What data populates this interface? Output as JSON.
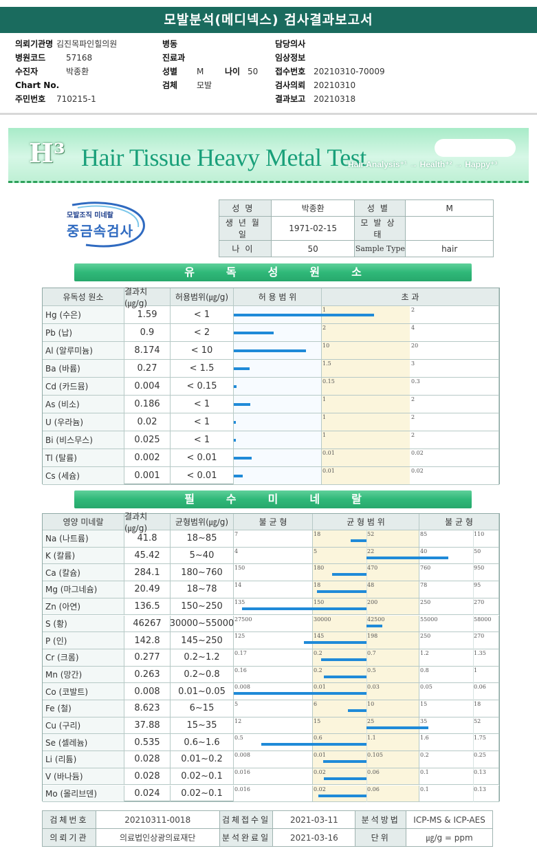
{
  "header": {
    "title": "모발분석(메디넥스) 검사결과보고서"
  },
  "patient_info": {
    "rows": [
      [
        {
          "label": "의뢰기관명",
          "value": "김진목파인힐의원"
        },
        {
          "label": "병동",
          "value": ""
        },
        {
          "label": "담당의사",
          "value": ""
        }
      ],
      [
        {
          "label": "병원코드",
          "value": "57168"
        },
        {
          "label": "진료과",
          "value": ""
        },
        {
          "label": "임상정보",
          "value": ""
        }
      ],
      [
        {
          "label": "수진자",
          "value": "박종환"
        },
        {
          "label": "성별",
          "value": "M"
        },
        {
          "label": "나이",
          "value": "50"
        },
        {
          "label": "접수번호",
          "value": "20210310-70009"
        }
      ],
      [
        {
          "label": "Chart No.",
          "value": ""
        },
        {
          "label": "검체",
          "value": "모발"
        },
        {
          "label": "검사의뢰",
          "value": "20210310"
        }
      ],
      [
        {
          "label": "주민번호",
          "value": "710215-1"
        },
        {
          "label": "결과보고",
          "value": "20210318"
        }
      ]
    ]
  },
  "banner": {
    "logo": "H³",
    "title": "Hair Tissue Heavy Metal Test",
    "subtitle": "Hair Analysis⁺¹ → Health⁺² → Happy⁺³"
  },
  "brand": {
    "small": "모발조직 미네랄",
    "big": "중금속검사"
  },
  "info_table": {
    "rows": [
      [
        {
          "k": "성명",
          "v": "박종환"
        },
        {
          "k": "성별",
          "v": "M"
        }
      ],
      [
        {
          "k": "생년월일",
          "v": "1971-02-15"
        },
        {
          "k": "모발상태",
          "v": ""
        }
      ],
      [
        {
          "k": "나이",
          "v": "50"
        },
        {
          "k": "Sample Type",
          "v": "hair"
        }
      ]
    ]
  },
  "toxic": {
    "title": "유독성원소",
    "headers": [
      "유독성 원소",
      "결과치(㎍/g)",
      "허용범위(㎍/g)",
      "허 용 범 위",
      "초 과"
    ],
    "rows": [
      {
        "name": "Hg (수은)",
        "value": "1.59",
        "range": "< 1",
        "ticks": [
          "1",
          "2"
        ],
        "level": 1.59
      },
      {
        "name": "Pb (납)",
        "value": "0.9",
        "range": "< 2",
        "ticks": [
          "2",
          "4"
        ],
        "level": 0.45
      },
      {
        "name": "Al (알루미늄)",
        "value": "8.174",
        "range": "< 10",
        "ticks": [
          "10",
          "20"
        ],
        "level": 0.8174
      },
      {
        "name": "Ba (바륨)",
        "value": "0.27",
        "range": "< 1.5",
        "ticks": [
          "1.5",
          "3"
        ],
        "level": 0.18
      },
      {
        "name": "Cd (카드뮴)",
        "value": "0.004",
        "range": "< 0.15",
        "ticks": [
          "0.15",
          "0.3"
        ],
        "level": 0.03
      },
      {
        "name": "As (비소)",
        "value": "0.186",
        "range": "< 1",
        "ticks": [
          "1",
          "2"
        ],
        "level": 0.186
      },
      {
        "name": "U (우라늄)",
        "value": "0.02",
        "range": "< 1",
        "ticks": [
          "1",
          "2"
        ],
        "level": 0.02
      },
      {
        "name": "Bi (비스무스)",
        "value": "0.025",
        "range": "< 1",
        "ticks": [
          "1",
          "2"
        ],
        "level": 0.025
      },
      {
        "name": "Tl (탈륨)",
        "value": "0.002",
        "range": "< 0.01",
        "ticks": [
          "0.01",
          "0.02"
        ],
        "level": 0.2
      },
      {
        "name": "Cs (세슘)",
        "value": "0.001",
        "range": "< 0.01",
        "ticks": [
          "0.01",
          "0.02"
        ],
        "level": 0.1
      }
    ]
  },
  "minerals": {
    "title": "필수미네랄",
    "headers": [
      "영양 미네랄",
      "결과치(㎍/g)",
      "균형범위(㎍/g)",
      "불 균 형",
      "균 형 범 위",
      "불 균 형"
    ],
    "rows": [
      {
        "name": "Na (나트륨)",
        "value": "41.8",
        "range": "18~85",
        "ticks": [
          "7",
          "18",
          "52",
          "85",
          "110"
        ],
        "v": 41.8
      },
      {
        "name": "K (칼륨)",
        "value": "45.42",
        "range": "5~40",
        "ticks": [
          "4",
          "5",
          "22",
          "40",
          "50"
        ],
        "v": 45.42
      },
      {
        "name": "Ca (칼슘)",
        "value": "284.1",
        "range": "180~760",
        "ticks": [
          "150",
          "180",
          "470",
          "760",
          "950"
        ],
        "v": 284.1
      },
      {
        "name": "Mg (마그네슘)",
        "value": "20.49",
        "range": "18~78",
        "ticks": [
          "14",
          "18",
          "48",
          "78",
          "95"
        ],
        "v": 20.49
      },
      {
        "name": "Zn (아연)",
        "value": "136.5",
        "range": "150~250",
        "ticks": [
          "135",
          "150",
          "200",
          "250",
          "270"
        ],
        "v": 136.5
      },
      {
        "name": "S (황)",
        "value": "46267",
        "range": "30000~55000",
        "ticks": [
          "27500",
          "30000",
          "42500",
          "55000",
          "58000"
        ],
        "v": 46267
      },
      {
        "name": "P (인)",
        "value": "142.8",
        "range": "145~250",
        "ticks": [
          "125",
          "145",
          "198",
          "250",
          "270"
        ],
        "v": 142.8
      },
      {
        "name": "Cr (크롬)",
        "value": "0.277",
        "range": "0.2~1.2",
        "ticks": [
          "0.17",
          "0.2",
          "0.7",
          "1.2",
          "1.35"
        ],
        "v": 0.277
      },
      {
        "name": "Mn (망간)",
        "value": "0.263",
        "range": "0.2~0.8",
        "ticks": [
          "0.16",
          "0.2",
          "0.5",
          "0.8",
          "1"
        ],
        "v": 0.263
      },
      {
        "name": "Co (코발트)",
        "value": "0.008",
        "range": "0.01~0.05",
        "ticks": [
          "0.008",
          "0.01",
          "0.03",
          "0.05",
          "0.06"
        ],
        "v": 0.008
      },
      {
        "name": "Fe (철)",
        "value": "8.623",
        "range": "6~15",
        "ticks": [
          "5",
          "6",
          "10",
          "15",
          "18"
        ],
        "v": 8.623
      },
      {
        "name": "Cu (구리)",
        "value": "37.88",
        "range": "15~35",
        "ticks": [
          "12",
          "15",
          "25",
          "35",
          "52"
        ],
        "v": 37.88
      },
      {
        "name": "Se (셀레늄)",
        "value": "0.535",
        "range": "0.6~1.6",
        "ticks": [
          "0.5",
          "0.6",
          "1.1",
          "1.6",
          "1.75"
        ],
        "v": 0.535
      },
      {
        "name": "Li (리튬)",
        "value": "0.028",
        "range": "0.01~0.2",
        "ticks": [
          "0.008",
          "0.01",
          "0.105",
          "0.2",
          "0.25"
        ],
        "v": 0.028
      },
      {
        "name": "V (바나듐)",
        "value": "0.028",
        "range": "0.02~0.1",
        "ticks": [
          "0.016",
          "0.02",
          "0.06",
          "0.1",
          "0.13"
        ],
        "v": 0.028
      },
      {
        "name": "Mo (몰리브덴)",
        "value": "0.024",
        "range": "0.02~0.1",
        "ticks": [
          "0.016",
          "0.02",
          "0.06",
          "0.1",
          "0.13"
        ],
        "v": 0.024
      }
    ]
  },
  "sample": {
    "rows": [
      [
        {
          "k": "검체번호",
          "v": "20210311-0018"
        },
        {
          "k": "검체접수일",
          "v": "2021-03-11"
        },
        {
          "k": "분석방법",
          "v": "ICP-MS & ICP-AES"
        }
      ],
      [
        {
          "k": "의뢰기관",
          "v": "의료법인상광의료재단"
        },
        {
          "k": "분석완료일",
          "v": "2021-03-16"
        },
        {
          "k": "단위",
          "v": "㎍/g = ppm"
        }
      ]
    ]
  },
  "colors": {
    "header_bg": "#1a6b5e",
    "section_green": "#2fb878",
    "bar_blue": "#1f8ad8",
    "zone_yellow": "#fbf5dc",
    "zone_green": "#eef8f0"
  }
}
